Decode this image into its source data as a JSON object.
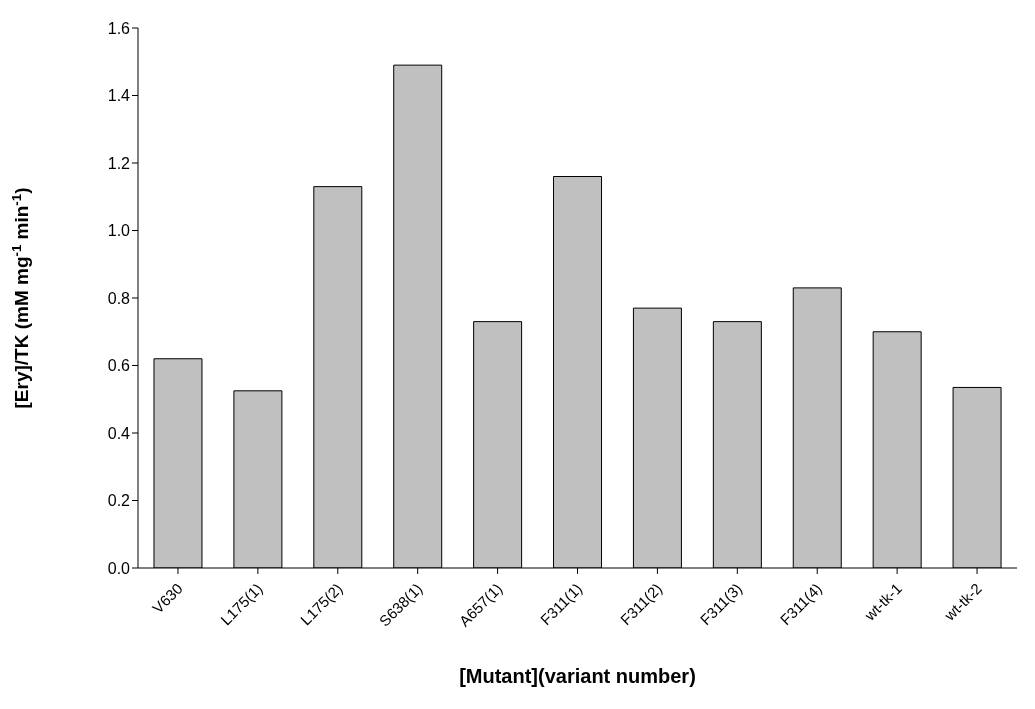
{
  "chart_data": {
    "type": "bar",
    "xlabel": "[Mutant](variant number)",
    "ylabel": "[Ery]/TK (mM mg$^{-1}$ min$^{-1}$)",
    "categories": [
      "V630",
      "L175(1)",
      "L175(2)",
      "S638(1)",
      "A657(1)",
      "F311(1)",
      "F311(2)",
      "F311(3)",
      "F311(4)",
      "wt-tk-1",
      "wt-tk-2"
    ],
    "values": [
      0.62,
      0.525,
      1.13,
      1.49,
      0.73,
      1.16,
      0.77,
      0.73,
      0.83,
      0.7,
      0.535
    ],
    "color": "#c0c0c0",
    "ylim": [
      0,
      1.6
    ],
    "yticks": [
      {
        "value": 0,
        "label": "0.0"
      },
      {
        "value": 0.2,
        "label": "0.2"
      },
      {
        "value": 0.4,
        "label": "0.4"
      },
      {
        "value": 0.6,
        "label": "0.6"
      },
      {
        "value": 0.8,
        "label": "0.8"
      },
      {
        "value": 1,
        "label": "1.0"
      },
      {
        "value": 1.2,
        "label": "1.2"
      },
      {
        "value": 1.4,
        "label": "1.4"
      },
      {
        "value": 1.6,
        "label": "1.6"
      }
    ],
    "grid": false
  }
}
